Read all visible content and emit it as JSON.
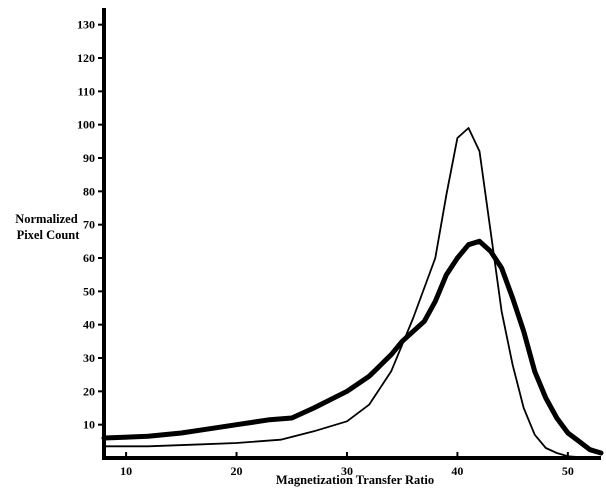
{
  "chart_data": {
    "type": "line",
    "title": "",
    "xlabel": "Magnetization Transfer Ratio",
    "ylabel_lines": [
      "Normalized",
      "Pixel Count"
    ],
    "xlim": [
      8,
      53
    ],
    "ylim": [
      0,
      135
    ],
    "xticks": [
      10,
      20,
      30,
      40,
      50
    ],
    "yticks": [
      10,
      20,
      30,
      40,
      50,
      60,
      70,
      80,
      90,
      100,
      110,
      120,
      130
    ],
    "grid": false,
    "legend": "none",
    "series": [
      {
        "color": "#000000",
        "line_weight": "thin",
        "points": [
          [
            8,
            3.5
          ],
          [
            12,
            3.5
          ],
          [
            16,
            4
          ],
          [
            20,
            4.5
          ],
          [
            24,
            5.5
          ],
          [
            27,
            8
          ],
          [
            30,
            11
          ],
          [
            32,
            16
          ],
          [
            34,
            26
          ],
          [
            36,
            42
          ],
          [
            38,
            60
          ],
          [
            39,
            79
          ],
          [
            40,
            96
          ],
          [
            41,
            99
          ],
          [
            42,
            92
          ],
          [
            43,
            68
          ],
          [
            44,
            44
          ],
          [
            45,
            28
          ],
          [
            46,
            15
          ],
          [
            47,
            7
          ],
          [
            48,
            3
          ],
          [
            49,
            1.5
          ],
          [
            50,
            0.5
          ],
          [
            52,
            0
          ]
        ]
      },
      {
        "color": "#000000",
        "line_weight": "thick",
        "points": [
          [
            8,
            6
          ],
          [
            12,
            6.5
          ],
          [
            15,
            7.5
          ],
          [
            17,
            8.5
          ],
          [
            20,
            10
          ],
          [
            23,
            11.5
          ],
          [
            25,
            12
          ],
          [
            27,
            15
          ],
          [
            30,
            20
          ],
          [
            32,
            24.5
          ],
          [
            34,
            31
          ],
          [
            35,
            35
          ],
          [
            37,
            41
          ],
          [
            38,
            47
          ],
          [
            39,
            55
          ],
          [
            40,
            60
          ],
          [
            41,
            64
          ],
          [
            42,
            65
          ],
          [
            43,
            62
          ],
          [
            44,
            57
          ],
          [
            45,
            48
          ],
          [
            46,
            38
          ],
          [
            47,
            26
          ],
          [
            48,
            18
          ],
          [
            49,
            12
          ],
          [
            50,
            7.5
          ],
          [
            51,
            5
          ],
          [
            52,
            2.5
          ],
          [
            53,
            1.5
          ]
        ]
      }
    ]
  }
}
